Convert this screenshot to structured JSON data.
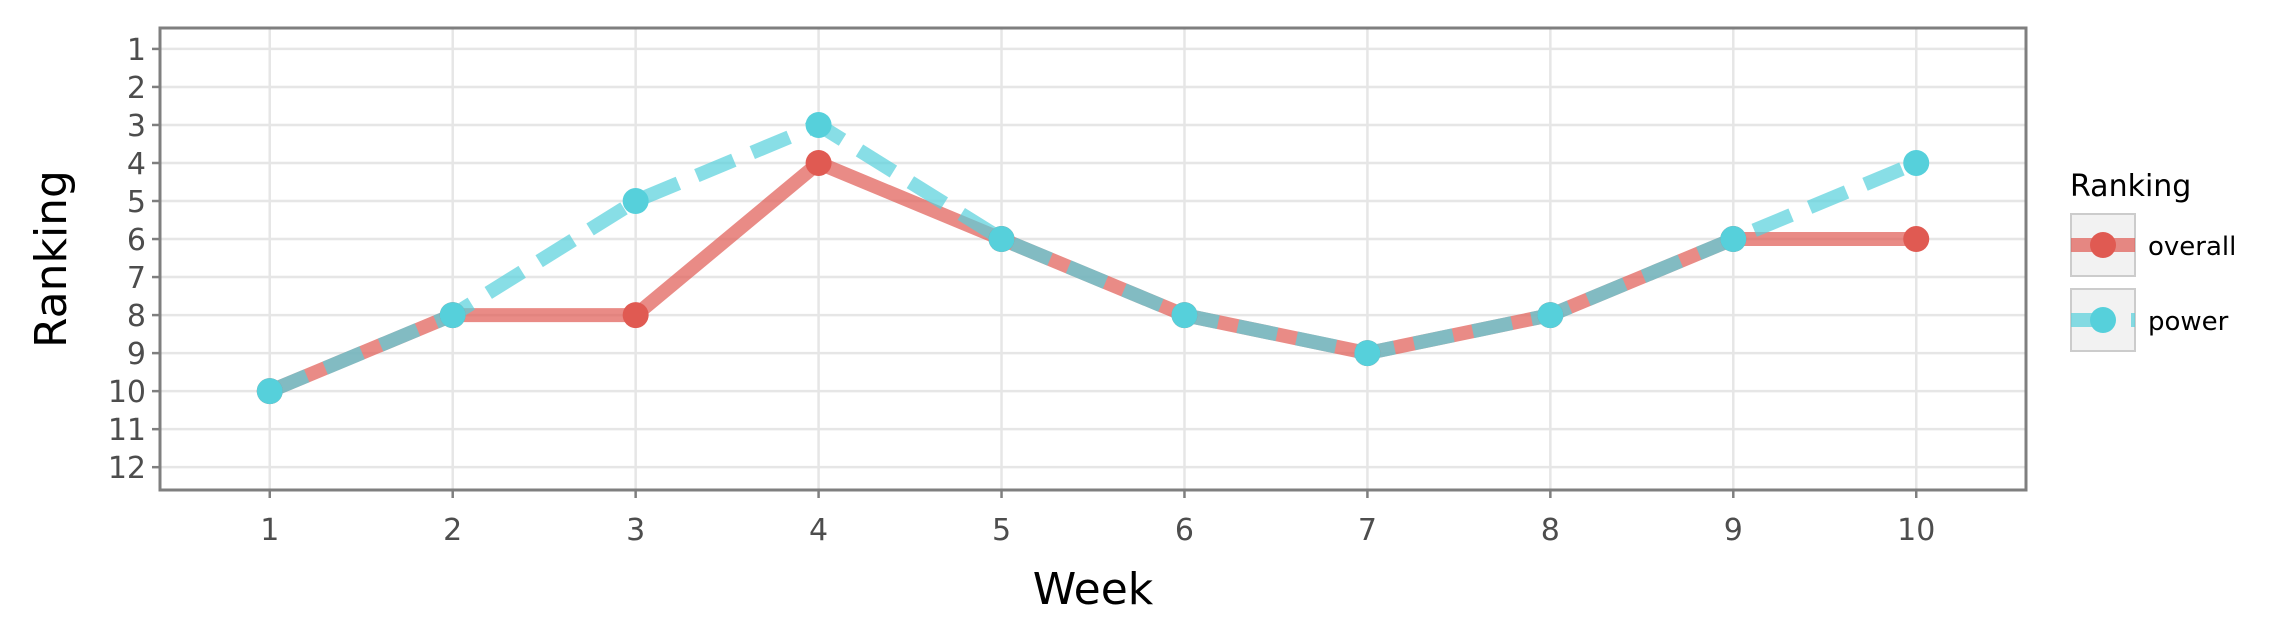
{
  "chart_data": {
    "type": "line",
    "title": "",
    "xlabel": "Week",
    "ylabel": "Ranking",
    "x": [
      1,
      2,
      3,
      4,
      5,
      6,
      7,
      8,
      9,
      10
    ],
    "x_ticks": [
      "1",
      "2",
      "3",
      "4",
      "5",
      "6",
      "7",
      "8",
      "9",
      "10"
    ],
    "y_ticks": [
      "1",
      "2",
      "3",
      "4",
      "5",
      "6",
      "7",
      "8",
      "9",
      "10",
      "11",
      "12"
    ],
    "xlim": [
      0.4,
      10.6
    ],
    "ylim": [
      12.6,
      0.45
    ],
    "y_reversed": true,
    "grid": true,
    "legend": {
      "title": "Ranking",
      "position": "right"
    },
    "series": [
      {
        "name": "overall",
        "values": [
          10,
          8,
          8,
          4,
          6,
          8,
          9,
          8,
          6,
          6
        ],
        "color": "#e05a52",
        "line_style": "solid"
      },
      {
        "name": "power",
        "values": [
          10,
          8,
          5,
          3,
          6,
          8,
          9,
          8,
          6,
          4
        ],
        "color": "#56d0db",
        "line_style": "dashed"
      }
    ]
  }
}
